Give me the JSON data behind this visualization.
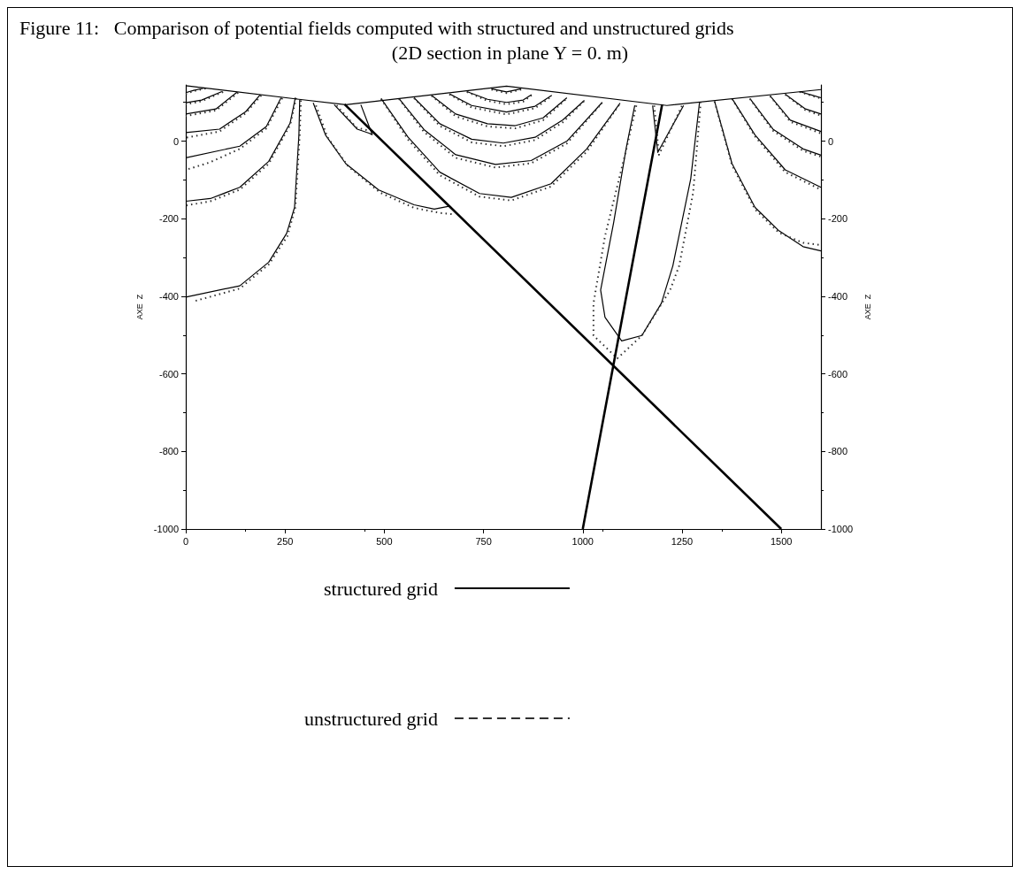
{
  "chart_data": {
    "type": "line",
    "title": "Figure 11:   Comparison of potential fields computed with structured and unstructured grids",
    "subtitle": "(2D section in plane Y = 0. m)",
    "ylabel": "AXE  Z",
    "y2label": "AXE  Z",
    "xlim": [
      0,
      1600
    ],
    "xticks": [
      0,
      250,
      500,
      750,
      1000,
      1250,
      1500
    ],
    "ylim": [
      -1000,
      145
    ],
    "yticks": [
      -1000,
      -800,
      -600,
      -400,
      -200,
      0
    ],
    "y2lim": [
      -1000,
      145
    ],
    "y2ticks": [
      -1000,
      -800,
      -600,
      -400,
      -200,
      0
    ],
    "grid": false,
    "legend": "bottom",
    "marker": "none",
    "series": [
      {
        "name": "structured grid",
        "color": "#000000",
        "line_style": "solid",
        "x": [
          47,
          20,
          0,
          null,
          91,
          40,
          0,
          null,
          129,
          76,
          0,
          null,
          187,
          151,
          85,
          0,
          null,
          240,
          203,
          136,
          0,
          null,
          276,
          263,
          209,
          136,
          62,
          0,
          null,
          287,
          285,
          274,
          254,
          209,
          136,
          0,
          null,
          321,
          352,
          403,
          486,
          575,
          626,
          666,
          null,
          374,
          432,
          463,
          470,
          null,
          441,
          470,
          null,
          770,
          808,
          845,
          null,
          708,
          760,
          808,
          850,
          871,
          null,
          664,
          720,
          808,
          880,
          922,
          null,
          619,
          680,
          760,
          830,
          900,
          960,
          null,
          575,
          640,
          720,
          800,
          880,
          950,
          1004,
          null,
          537,
          600,
          680,
          780,
          870,
          960,
          1049,
          null,
          492,
          560,
          640,
          740,
          820,
          920,
          1010,
          1094,
          null,
          1131,
          1109,
          1078,
          1045,
          1056,
          1098,
          1149,
          1198,
          1227,
          1272,
          1294,
          null,
          1176,
          1189,
          1254,
          null,
          1546,
          1580,
          1600,
          null,
          1510,
          1561,
          1600,
          null,
          1472,
          1523,
          1600,
          null,
          1421,
          1479,
          1555,
          1600,
          null,
          1376,
          1434,
          1510,
          1600,
          null,
          1332,
          1376,
          1434,
          1494,
          1555,
          1600
        ],
        "values": [
          137,
          131,
          125,
          null,
          128,
          106,
          99,
          null,
          126,
          83,
          70,
          null,
          119,
          76,
          31,
          22,
          null,
          112,
          38,
          -13,
          -43,
          null,
          112,
          47,
          -52,
          -119,
          -148,
          -155,
          null,
          106,
          16,
          -171,
          -238,
          -312,
          -373,
          -402,
          null,
          99,
          16,
          -58,
          -126,
          -164,
          -175,
          -167,
          null,
          94,
          31,
          20,
          16,
          null,
          94,
          16,
          null,
          135,
          127,
          135,
          null,
          128,
          108,
          100,
          106,
          120,
          null,
          122,
          92,
          75,
          90,
          118,
          null,
          118,
          70,
          45,
          40,
          60,
          112,
          null,
          112,
          45,
          5,
          -5,
          10,
          55,
          105,
          null,
          110,
          30,
          -35,
          -60,
          -50,
          0,
          100,
          null,
          110,
          10,
          -80,
          -135,
          -145,
          -110,
          -20,
          98,
          null,
          92,
          -20,
          -209,
          -384,
          -454,
          -515,
          -501,
          -418,
          -321,
          -97,
          99,
          null,
          92,
          -29,
          92,
          null,
          128,
          118,
          112,
          null,
          121,
          83,
          70,
          null,
          117,
          54,
          25,
          null,
          110,
          31,
          -20,
          -36,
          null,
          110,
          16,
          -74,
          -119,
          null,
          103,
          -58,
          -171,
          -231,
          -272,
          -283
        ]
      },
      {
        "name": "unstructured grid",
        "color": "#303030",
        "line_style": "dotted",
        "x": [
          50,
          20,
          0,
          null,
          94,
          40,
          0,
          null,
          132,
          76,
          0,
          null,
          190,
          151,
          85,
          0,
          null,
          243,
          203,
          136,
          60,
          0,
          null,
          278,
          263,
          209,
          136,
          62,
          0,
          null,
          290,
          287,
          276,
          256,
          209,
          136,
          20,
          null,
          328,
          357,
          410,
          490,
          575,
          640,
          677,
          null,
          380,
          430,
          458,
          null,
          1180,
          1192,
          1250,
          null,
          770,
          808,
          845,
          null,
          708,
          760,
          808,
          850,
          871,
          null,
          664,
          720,
          808,
          880,
          922,
          null,
          619,
          680,
          760,
          830,
          900,
          960,
          null,
          575,
          640,
          720,
          800,
          880,
          950,
          1004,
          null,
          537,
          600,
          680,
          780,
          870,
          960,
          1049,
          null,
          492,
          560,
          640,
          740,
          820,
          920,
          1010,
          1094,
          null,
          1135,
          1110,
          1056,
          1027,
          1027,
          1087,
          1149,
          1220,
          1243,
          1278,
          1297,
          null,
          1546,
          1580,
          1600,
          null,
          1510,
          1561,
          1600,
          null,
          1472,
          1523,
          1600,
          null,
          1421,
          1479,
          1555,
          1600,
          null,
          1376,
          1434,
          1510,
          1600,
          null,
          1332,
          1376,
          1434,
          1494,
          1555,
          1600
        ],
        "values": [
          136,
          129,
          122,
          null,
          127,
          103,
          95,
          null,
          125,
          79,
          65,
          null,
          118,
          72,
          25,
          9,
          null,
          111,
          33,
          -20,
          -55,
          -74,
          null,
          111,
          42,
          -58,
          -125,
          -155,
          -166,
          null,
          105,
          16,
          -171,
          -245,
          -318,
          -380,
          -413,
          null,
          92,
          10,
          -66,
          -133,
          -172,
          -185,
          -189,
          null,
          92,
          35,
          28,
          null,
          92,
          -35,
          92,
          null,
          133,
          124,
          133,
          null,
          127,
          104,
          95,
          102,
          118,
          null,
          121,
          87,
          69,
          85,
          116,
          null,
          117,
          64,
          38,
          33,
          54,
          110,
          null,
          111,
          39,
          -3,
          -13,
          3,
          49,
          104,
          null,
          109,
          24,
          -43,
          -68,
          -57,
          -6,
          99,
          null,
          109,
          4,
          -88,
          -143,
          -153,
          -117,
          -27,
          97,
          null,
          92,
          -20,
          -245,
          -418,
          -501,
          -560,
          -501,
          -384,
          -321,
          -133,
          99,
          null,
          127,
          116,
          110,
          null,
          120,
          80,
          66,
          null,
          116,
          50,
          20,
          null,
          109,
          27,
          -25,
          -40,
          null,
          109,
          12,
          -80,
          -125,
          null,
          102,
          -62,
          -176,
          -236,
          -262,
          -268
        ]
      },
      {
        "color": "#000000",
        "line_style": "solid",
        "x": [
          0,
          285,
          403,
          808,
          1212,
          1600
        ],
        "values": [
          143,
          108,
          94,
          142,
          92,
          133
        ]
      },
      {
        "color": "#000000",
        "line_style": "solid",
        "x": [
          400,
          1500,
          null,
          1000,
          1200
        ],
        "values": [
          95,
          -1000,
          null,
          -1000,
          95
        ]
      }
    ]
  }
}
